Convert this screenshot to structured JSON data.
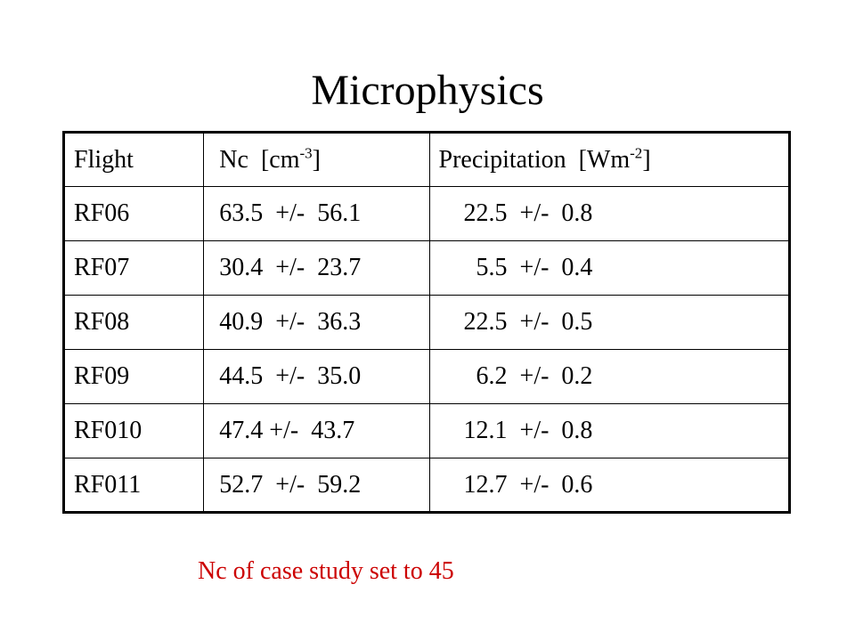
{
  "title": "Microphysics",
  "table": {
    "headers": {
      "flight": "Flight",
      "nc_label": " Nc  [cm",
      "nc_sup": "-3",
      "nc_close": "]",
      "precip_label": "Precipitation  [Wm",
      "precip_sup": "-2",
      "precip_close": "]"
    },
    "rows": [
      {
        "flight": "RF06",
        "nc": " 63.5  +/-  56.1",
        "precip": "    22.5  +/-  0.8"
      },
      {
        "flight": "RF07",
        "nc": " 30.4  +/-  23.7",
        "precip": "      5.5  +/-  0.4"
      },
      {
        "flight": "RF08",
        "nc": " 40.9  +/-  36.3",
        "precip": "    22.5  +/-  0.5"
      },
      {
        "flight": "RF09",
        "nc": " 44.5  +/-  35.0",
        "precip": "      6.2  +/-  0.2"
      },
      {
        "flight": "RF010",
        "nc": " 47.4 +/-  43.7",
        "precip": "    12.1  +/-  0.8"
      },
      {
        "flight": "RF011",
        "nc": " 52.7  +/-  59.2",
        "precip": "    12.7  +/-  0.6"
      }
    ]
  },
  "footnote": {
    "text": "Nc of case study set to 45",
    "color": "#cc0000"
  }
}
